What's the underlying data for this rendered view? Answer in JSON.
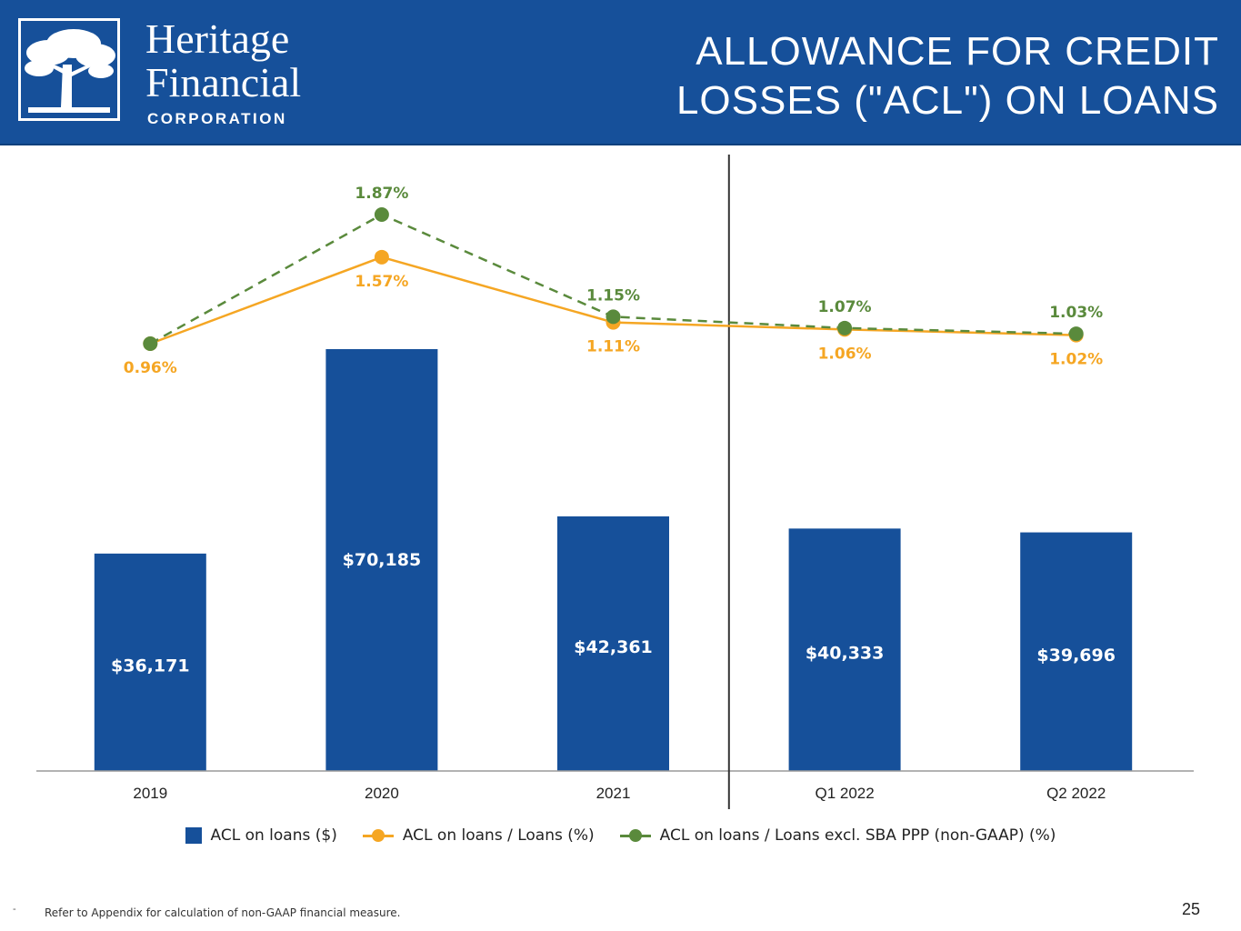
{
  "header": {
    "logo_line1": "Heritage",
    "logo_line2": "Financial",
    "logo_line3": "CORPORATION",
    "title": "ALLOWANCE FOR CREDIT LOSSES (\"ACL\") ON LOANS",
    "background_color": "#16509a"
  },
  "chart_data": {
    "type": "bar",
    "categories": [
      "2019",
      "2020",
      "2021",
      "Q1 2022",
      "Q2 2022"
    ],
    "bars": {
      "name": "ACL on loans ($)",
      "values": [
        36171,
        70185,
        42361,
        40333,
        39696
      ],
      "labels": [
        "$36,171",
        "$70,185",
        "$42,361",
        "$40,333",
        "$39,696"
      ],
      "color": "#16509a"
    },
    "lines": [
      {
        "name": "ACL on loans / Loans (%)",
        "values": [
          0.96,
          1.57,
          1.11,
          1.06,
          1.02
        ],
        "labels": [
          "0.96%",
          "1.57%",
          "1.11%",
          "1.06%",
          "1.02%"
        ],
        "color": "#f5a623",
        "style": "solid"
      },
      {
        "name": "ACL on loans / Loans excl. SBA PPP (non-GAAP) (%)",
        "values": [
          0.96,
          1.87,
          1.15,
          1.07,
          1.03
        ],
        "labels": [
          "",
          "1.87%",
          "1.15%",
          "1.07%",
          "1.03%"
        ],
        "color": "#5a8a3c",
        "style": "dashed"
      }
    ],
    "divider_after_category": "2021",
    "legend_position": "bottom"
  },
  "legend": {
    "bars_label": "ACL on loans ($)",
    "line1_label": "ACL on loans / Loans (%)",
    "line2_label": "ACL on loans / Loans excl. SBA PPP (non-GAAP) (%)"
  },
  "footer": {
    "dash": "-",
    "note": "Refer to Appendix for calculation of non-GAAP financial measure.",
    "page_number": "25"
  }
}
